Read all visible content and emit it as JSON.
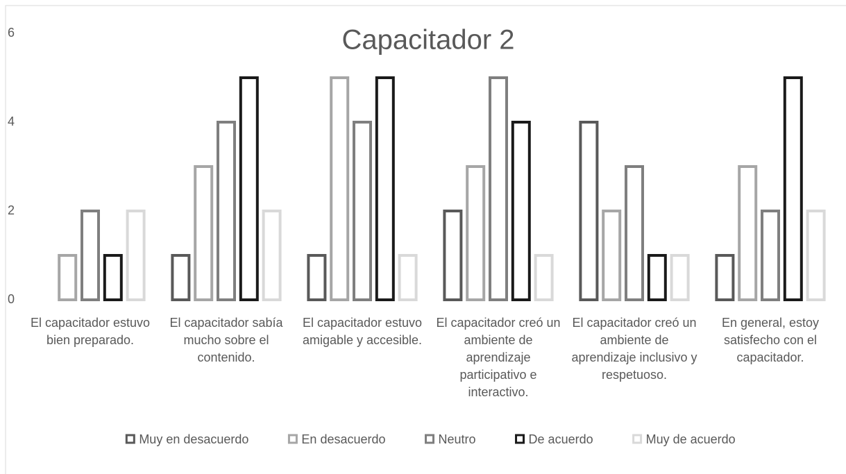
{
  "chart_data": {
    "type": "bar",
    "title": "Capacitador 2",
    "categories": [
      "El capacitador estuvo bien preparado.",
      "El capacitador sabía mucho sobre el contenido.",
      "El capacitador estuvo amigable y accesible.",
      "El capacitador creó un ambiente de aprendizaje participativo e interactivo.",
      "El capacitador creó un ambiente de aprendizaje inclusivo y respetuoso.",
      "En general, estoy satisfecho con el capacitador."
    ],
    "series": [
      {
        "name": "Muy en desacuerdo",
        "color": "#595959",
        "values": [
          0,
          1,
          1,
          2,
          4,
          1
        ]
      },
      {
        "name": "En desacuerdo",
        "color": "#a6a6a6",
        "values": [
          1,
          3,
          5,
          3,
          2,
          3
        ]
      },
      {
        "name": "Neutro",
        "color": "#7f7f7f",
        "values": [
          2,
          4,
          4,
          5,
          3,
          2
        ]
      },
      {
        "name": "De acuerdo",
        "color": "#1a1a1a",
        "values": [
          1,
          5,
          5,
          4,
          1,
          5
        ]
      },
      {
        "name": "Muy de acuerdo",
        "color": "#d9d9d9",
        "values": [
          2,
          2,
          1,
          1,
          1,
          2
        ]
      }
    ],
    "ylim": [
      0,
      6
    ],
    "yticks": [
      0,
      2,
      4,
      6
    ],
    "grid": false,
    "legend": "bottom"
  }
}
